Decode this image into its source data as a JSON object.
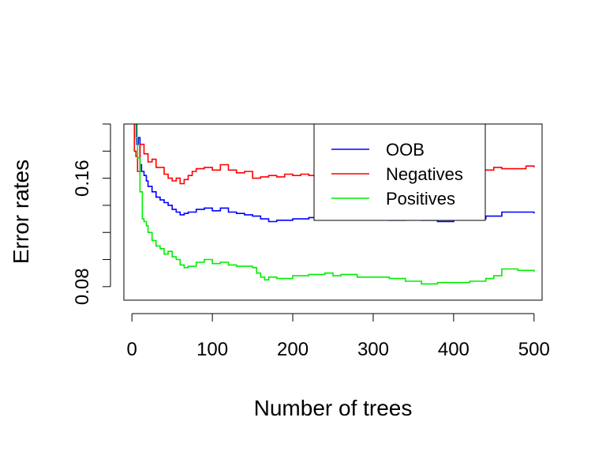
{
  "chart_data": {
    "type": "line",
    "title": "",
    "xlabel": "Number of trees",
    "ylabel": "Error rates",
    "xlim": [
      -10,
      510
    ],
    "ylim": [
      0.07,
      0.2
    ],
    "x_ticks": [
      0,
      100,
      200,
      300,
      400,
      500
    ],
    "x_tick_labels": [
      "0",
      "100",
      "200",
      "300",
      "400",
      "500"
    ],
    "y_ticks": [
      0.08,
      0.1,
      0.12,
      0.14,
      0.16,
      0.18,
      0.2
    ],
    "y_tick_labels": [
      "0.08",
      "",
      "",
      "",
      "0.16",
      "",
      ""
    ],
    "grid": false,
    "legend": {
      "position": "top-right"
    },
    "series": [
      {
        "name": "OOB",
        "color": "#0000ff",
        "points": [
          [
            1,
            0.22
          ],
          [
            3,
            0.2
          ],
          [
            6,
            0.185
          ],
          [
            8,
            0.19
          ],
          [
            10,
            0.17
          ],
          [
            12,
            0.165
          ],
          [
            15,
            0.162
          ],
          [
            18,
            0.158
          ],
          [
            20,
            0.154
          ],
          [
            25,
            0.15
          ],
          [
            30,
            0.146
          ],
          [
            35,
            0.144
          ],
          [
            40,
            0.142
          ],
          [
            45,
            0.14
          ],
          [
            50,
            0.137
          ],
          [
            55,
            0.135
          ],
          [
            60,
            0.133
          ],
          [
            65,
            0.134
          ],
          [
            70,
            0.135
          ],
          [
            80,
            0.137
          ],
          [
            90,
            0.138
          ],
          [
            100,
            0.136
          ],
          [
            110,
            0.138
          ],
          [
            120,
            0.135
          ],
          [
            130,
            0.134
          ],
          [
            140,
            0.133
          ],
          [
            150,
            0.132
          ],
          [
            160,
            0.13
          ],
          [
            170,
            0.128
          ],
          [
            180,
            0.129
          ],
          [
            200,
            0.13
          ],
          [
            220,
            0.131
          ],
          [
            240,
            0.131
          ],
          [
            250,
            0.132
          ],
          [
            260,
            0.131
          ],
          [
            280,
            0.13
          ],
          [
            300,
            0.13
          ],
          [
            320,
            0.129
          ],
          [
            340,
            0.13
          ],
          [
            360,
            0.129
          ],
          [
            380,
            0.128
          ],
          [
            400,
            0.13
          ],
          [
            420,
            0.13
          ],
          [
            440,
            0.132
          ],
          [
            460,
            0.135
          ],
          [
            480,
            0.135
          ],
          [
            500,
            0.134
          ]
        ]
      },
      {
        "name": "Negatives",
        "color": "#ff0000",
        "points": [
          [
            1,
            0.22
          ],
          [
            3,
            0.18
          ],
          [
            5,
            0.176
          ],
          [
            7,
            0.165
          ],
          [
            10,
            0.185
          ],
          [
            15,
            0.178
          ],
          [
            20,
            0.172
          ],
          [
            25,
            0.174
          ],
          [
            30,
            0.168
          ],
          [
            35,
            0.168
          ],
          [
            40,
            0.163
          ],
          [
            45,
            0.16
          ],
          [
            50,
            0.158
          ],
          [
            55,
            0.16
          ],
          [
            60,
            0.156
          ],
          [
            65,
            0.159
          ],
          [
            70,
            0.162
          ],
          [
            75,
            0.165
          ],
          [
            80,
            0.167
          ],
          [
            90,
            0.168
          ],
          [
            100,
            0.166
          ],
          [
            110,
            0.17
          ],
          [
            120,
            0.166
          ],
          [
            130,
            0.164
          ],
          [
            140,
            0.165
          ],
          [
            150,
            0.16
          ],
          [
            160,
            0.161
          ],
          [
            170,
            0.162
          ],
          [
            180,
            0.161
          ],
          [
            190,
            0.163
          ],
          [
            200,
            0.162
          ],
          [
            210,
            0.163
          ],
          [
            220,
            0.162
          ],
          [
            250,
            0.164
          ],
          [
            300,
            0.165
          ],
          [
            350,
            0.166
          ],
          [
            400,
            0.166
          ],
          [
            450,
            0.168
          ],
          [
            460,
            0.167
          ],
          [
            480,
            0.167
          ],
          [
            490,
            0.169
          ],
          [
            500,
            0.168
          ]
        ]
      },
      {
        "name": "Positives",
        "color": "#00ee00",
        "points": [
          [
            1,
            0.22
          ],
          [
            3,
            0.2
          ],
          [
            5,
            0.19
          ],
          [
            7,
            0.175
          ],
          [
            10,
            0.15
          ],
          [
            13,
            0.13
          ],
          [
            15,
            0.128
          ],
          [
            18,
            0.125
          ],
          [
            20,
            0.12
          ],
          [
            25,
            0.114
          ],
          [
            30,
            0.11
          ],
          [
            35,
            0.108
          ],
          [
            40,
            0.104
          ],
          [
            45,
            0.106
          ],
          [
            50,
            0.102
          ],
          [
            55,
            0.1
          ],
          [
            60,
            0.096
          ],
          [
            65,
            0.094
          ],
          [
            70,
            0.095
          ],
          [
            80,
            0.098
          ],
          [
            90,
            0.1
          ],
          [
            100,
            0.097
          ],
          [
            110,
            0.098
          ],
          [
            120,
            0.096
          ],
          [
            130,
            0.095
          ],
          [
            140,
            0.095
          ],
          [
            150,
            0.094
          ],
          [
            155,
            0.09
          ],
          [
            160,
            0.087
          ],
          [
            165,
            0.085
          ],
          [
            170,
            0.087
          ],
          [
            180,
            0.086
          ],
          [
            200,
            0.088
          ],
          [
            220,
            0.089
          ],
          [
            240,
            0.09
          ],
          [
            250,
            0.088
          ],
          [
            260,
            0.089
          ],
          [
            280,
            0.087
          ],
          [
            300,
            0.087
          ],
          [
            320,
            0.086
          ],
          [
            340,
            0.084
          ],
          [
            360,
            0.082
          ],
          [
            370,
            0.082
          ],
          [
            380,
            0.083
          ],
          [
            400,
            0.083
          ],
          [
            420,
            0.084
          ],
          [
            440,
            0.086
          ],
          [
            450,
            0.088
          ],
          [
            460,
            0.093
          ],
          [
            480,
            0.092
          ],
          [
            500,
            0.091
          ]
        ]
      }
    ]
  }
}
